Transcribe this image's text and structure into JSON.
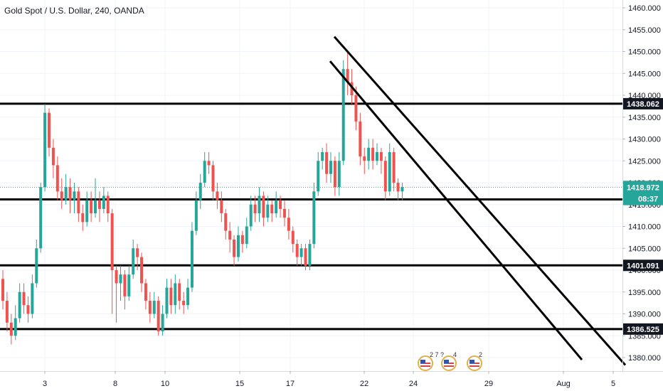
{
  "header": {
    "title": "Gold Spot / U.S. Dollar, 240, OANDA"
  },
  "chart_data": {
    "type": "candlestick",
    "symbol": "Gold Spot / U.S. Dollar",
    "interval": "240",
    "source": "OANDA",
    "ylim": [
      1375,
      1463
    ],
    "y_ticks": [
      "1460.000",
      "1455.000",
      "1450.000",
      "1445.000",
      "1440.000",
      "1435.000",
      "1430.000",
      "1425.000",
      "1420.000",
      "1415.000",
      "1410.000",
      "1405.000",
      "1400.000",
      "1395.000",
      "1390.000",
      "1385.000",
      "1380.000"
    ],
    "x_ticks": [
      "3",
      "8",
      "10",
      "15",
      "17",
      "22",
      "24",
      "29",
      "Aug",
      "5"
    ],
    "current_price": "1418.972",
    "countdown": "08:37",
    "price_color_up": "#26a69a",
    "price_color_down": "#ef5350",
    "horizontal_levels": [
      {
        "label": "1438.062",
        "value": 1438.062
      },
      {
        "label": "1416.180",
        "value": 1416.18
      },
      {
        "label": "1401.091",
        "value": 1401.091
      },
      {
        "label": "1386.525",
        "value": 1386.525
      }
    ],
    "candles": [
      [
        1398,
        1393,
        1400,
        1391
      ],
      [
        1393,
        1388,
        1395,
        1386
      ],
      [
        1388,
        1385,
        1390,
        1383
      ],
      [
        1385,
        1389,
        1392,
        1384
      ],
      [
        1389,
        1395,
        1397,
        1388
      ],
      [
        1395,
        1392,
        1397,
        1390
      ],
      [
        1392,
        1390,
        1394,
        1388
      ],
      [
        1390,
        1397,
        1399,
        1389
      ],
      [
        1397,
        1405,
        1407,
        1396
      ],
      [
        1405,
        1419,
        1420,
        1404
      ],
      [
        1419,
        1436,
        1438,
        1418
      ],
      [
        1436,
        1428,
        1437,
        1426
      ],
      [
        1428,
        1424,
        1430,
        1421
      ],
      [
        1424,
        1418,
        1426,
        1416
      ],
      [
        1418,
        1416,
        1421,
        1414
      ],
      [
        1416,
        1419,
        1422,
        1415
      ],
      [
        1419,
        1416,
        1421,
        1413
      ],
      [
        1416,
        1418,
        1420,
        1413
      ],
      [
        1418,
        1413,
        1419,
        1411
      ],
      [
        1413,
        1411,
        1415,
        1409
      ],
      [
        1411,
        1416,
        1418,
        1410
      ],
      [
        1416,
        1413,
        1418,
        1411
      ],
      [
        1413,
        1416,
        1421,
        1412
      ],
      [
        1416,
        1414,
        1418,
        1411
      ],
      [
        1414,
        1417,
        1419,
        1413
      ],
      [
        1417,
        1413,
        1418,
        1411
      ],
      [
        1413,
        1400,
        1414,
        1390
      ],
      [
        1400,
        1397,
        1401,
        1388
      ],
      [
        1397,
        1399,
        1401,
        1393
      ],
      [
        1399,
        1394,
        1400,
        1391
      ],
      [
        1394,
        1399,
        1401,
        1393
      ],
      [
        1399,
        1405,
        1407,
        1398
      ],
      [
        1405,
        1403,
        1406,
        1400
      ],
      [
        1403,
        1397,
        1404,
        1395
      ],
      [
        1397,
        1393,
        1398,
        1391
      ],
      [
        1393,
        1390,
        1395,
        1388
      ],
      [
        1390,
        1393,
        1395,
        1389
      ],
      [
        1393,
        1386,
        1394,
        1385
      ],
      [
        1386,
        1390,
        1392,
        1385
      ],
      [
        1390,
        1396,
        1398,
        1389
      ],
      [
        1396,
        1392,
        1398,
        1390
      ],
      [
        1392,
        1397,
        1399,
        1390
      ],
      [
        1397,
        1393,
        1398,
        1391
      ],
      [
        1393,
        1392,
        1395,
        1390
      ],
      [
        1392,
        1396,
        1398,
        1391
      ],
      [
        1396,
        1409,
        1411,
        1395
      ],
      [
        1409,
        1416,
        1418,
        1408
      ],
      [
        1416,
        1420,
        1422,
        1414
      ],
      [
        1420,
        1425,
        1427,
        1419
      ],
      [
        1425,
        1424,
        1427,
        1422
      ],
      [
        1424,
        1418,
        1425,
        1416
      ],
      [
        1418,
        1416,
        1420,
        1414
      ],
      [
        1416,
        1413,
        1418,
        1411
      ],
      [
        1413,
        1409,
        1414,
        1407
      ],
      [
        1409,
        1407,
        1411,
        1404
      ],
      [
        1407,
        1403,
        1408,
        1401
      ],
      [
        1403,
        1408,
        1410,
        1402
      ],
      [
        1408,
        1406,
        1409,
        1404
      ],
      [
        1406,
        1410,
        1412,
        1405
      ],
      [
        1410,
        1415,
        1417,
        1409
      ],
      [
        1415,
        1413,
        1417,
        1411
      ],
      [
        1413,
        1417,
        1419,
        1411
      ],
      [
        1417,
        1412,
        1418,
        1410
      ],
      [
        1412,
        1415,
        1417,
        1411
      ],
      [
        1415,
        1413,
        1416,
        1411
      ],
      [
        1413,
        1416,
        1418,
        1412
      ],
      [
        1416,
        1414,
        1417,
        1412
      ],
      [
        1414,
        1412,
        1416,
        1410
      ],
      [
        1412,
        1409,
        1414,
        1407
      ],
      [
        1409,
        1406,
        1410,
        1404
      ],
      [
        1406,
        1403,
        1407,
        1401
      ],
      [
        1403,
        1405,
        1406,
        1401
      ],
      [
        1405,
        1401,
        1406,
        1400
      ],
      [
        1401,
        1406,
        1407,
        1400
      ],
      [
        1406,
        1418,
        1420,
        1405
      ],
      [
        1418,
        1425,
        1427,
        1417
      ],
      [
        1425,
        1427,
        1428,
        1423
      ],
      [
        1427,
        1422,
        1429,
        1420
      ],
      [
        1422,
        1425,
        1427,
        1420
      ],
      [
        1425,
        1419,
        1426,
        1417
      ],
      [
        1419,
        1425,
        1427,
        1417
      ],
      [
        1425,
        1446,
        1448,
        1424
      ],
      [
        1446,
        1443,
        1450,
        1440
      ],
      [
        1443,
        1440,
        1446,
        1438
      ],
      [
        1440,
        1434,
        1442,
        1432
      ],
      [
        1434,
        1426,
        1436,
        1424
      ],
      [
        1426,
        1425,
        1428,
        1422
      ],
      [
        1425,
        1428,
        1430,
        1423
      ],
      [
        1428,
        1425,
        1430,
        1423
      ],
      [
        1425,
        1427,
        1429,
        1424
      ],
      [
        1427,
        1425,
        1428,
        1422
      ],
      [
        1425,
        1418,
        1426,
        1416
      ],
      [
        1418,
        1427,
        1429,
        1417
      ],
      [
        1427,
        1420,
        1428,
        1418
      ],
      [
        1420,
        1418,
        1421,
        1416
      ],
      [
        1418,
        1419,
        1420,
        1416
      ]
    ],
    "events": [
      {
        "label": "2 7 ?",
        "icon": "us-flag-event-icon"
      },
      {
        "label": "4",
        "icon": "us-flag-event-icon"
      },
      {
        "label": "2",
        "icon": "us-flag-event-icon"
      }
    ]
  }
}
